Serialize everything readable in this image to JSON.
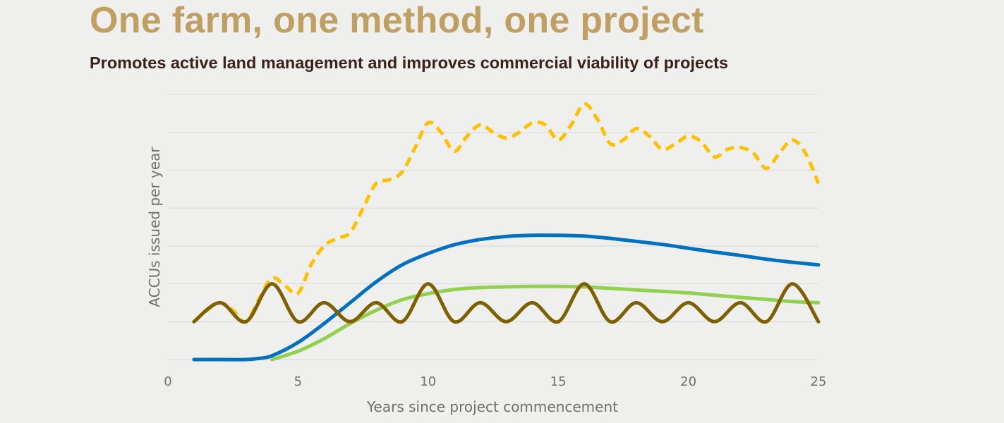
{
  "slide": {
    "title": "One farm, one method, one project",
    "subtitle": "Promotes active land management and improves commercial viability of projects"
  },
  "chart_data": {
    "type": "line",
    "title": "",
    "xlabel": "Years since project commencement",
    "ylabel": "ACCUs issued per year",
    "xlim": [
      0,
      25
    ],
    "ylim": [
      0,
      7
    ],
    "xticks": [
      0,
      5,
      10,
      15,
      20,
      25
    ],
    "gridlines": [
      0,
      1,
      2,
      3,
      4,
      5,
      6,
      7
    ],
    "grid": true,
    "legend": "none",
    "series": [
      {
        "color": "#ffc000",
        "style": "dashed",
        "points": [
          [
            1,
            1
          ],
          [
            1.5,
            1.3
          ],
          [
            2,
            1.5
          ],
          [
            2.5,
            1.3
          ],
          [
            3,
            1
          ],
          [
            3.5,
            1.6
          ],
          [
            4,
            2.15
          ],
          [
            4.5,
            1.95
          ],
          [
            5,
            1.75
          ],
          [
            5.5,
            2.5
          ],
          [
            6,
            3
          ],
          [
            6.5,
            3.2
          ],
          [
            7,
            3.35
          ],
          [
            7.5,
            4
          ],
          [
            8,
            4.65
          ],
          [
            8.5,
            4.75
          ],
          [
            9,
            4.95
          ],
          [
            9.5,
            5.6
          ],
          [
            10,
            6.25
          ],
          [
            10.5,
            6
          ],
          [
            11,
            5.5
          ],
          [
            11.5,
            5.9
          ],
          [
            12,
            6.2
          ],
          [
            12.5,
            6
          ],
          [
            13,
            5.85
          ],
          [
            13.5,
            6
          ],
          [
            14,
            6.25
          ],
          [
            14.5,
            6.2
          ],
          [
            15,
            5.8
          ],
          [
            15.5,
            6.2
          ],
          [
            16,
            6.75
          ],
          [
            16.5,
            6.35
          ],
          [
            17,
            5.7
          ],
          [
            17.5,
            5.8
          ],
          [
            18,
            6.1
          ],
          [
            18.5,
            5.9
          ],
          [
            19,
            5.55
          ],
          [
            19.5,
            5.7
          ],
          [
            20,
            5.9
          ],
          [
            20.5,
            5.75
          ],
          [
            21,
            5.35
          ],
          [
            21.5,
            5.55
          ],
          [
            22,
            5.6
          ],
          [
            22.5,
            5.45
          ],
          [
            23,
            5.05
          ],
          [
            23.5,
            5.45
          ],
          [
            24,
            5.8
          ],
          [
            24.5,
            5.45
          ],
          [
            25,
            4.65
          ]
        ]
      },
      {
        "color": "#0070c0",
        "style": "solid",
        "points": [
          [
            1,
            0
          ],
          [
            2,
            0
          ],
          [
            3,
            0
          ],
          [
            3.5,
            0.03
          ],
          [
            4,
            0.1
          ],
          [
            5,
            0.45
          ],
          [
            6,
            0.95
          ],
          [
            7,
            1.5
          ],
          [
            8,
            2.05
          ],
          [
            9,
            2.5
          ],
          [
            10,
            2.8
          ],
          [
            11,
            3.03
          ],
          [
            12,
            3.17
          ],
          [
            13,
            3.25
          ],
          [
            14,
            3.28
          ],
          [
            15,
            3.28
          ],
          [
            16,
            3.26
          ],
          [
            17,
            3.2
          ],
          [
            18,
            3.12
          ],
          [
            19,
            3.04
          ],
          [
            20,
            2.94
          ],
          [
            21,
            2.84
          ],
          [
            22,
            2.75
          ],
          [
            23,
            2.65
          ],
          [
            24,
            2.57
          ],
          [
            25,
            2.5
          ]
        ]
      },
      {
        "color": "#92d050",
        "style": "solid",
        "points": [
          [
            4,
            0
          ],
          [
            5,
            0.22
          ],
          [
            6,
            0.55
          ],
          [
            7,
            0.95
          ],
          [
            8,
            1.3
          ],
          [
            9,
            1.58
          ],
          [
            10,
            1.74
          ],
          [
            11,
            1.85
          ],
          [
            12,
            1.9
          ],
          [
            13,
            1.92
          ],
          [
            14,
            1.93
          ],
          [
            15,
            1.93
          ],
          [
            16,
            1.92
          ],
          [
            17,
            1.88
          ],
          [
            18,
            1.84
          ],
          [
            19,
            1.8
          ],
          [
            20,
            1.76
          ],
          [
            21,
            1.7
          ],
          [
            22,
            1.64
          ],
          [
            23,
            1.59
          ],
          [
            24,
            1.53
          ],
          [
            25,
            1.5
          ]
        ]
      },
      {
        "color": "#7f6000",
        "style": "solid",
        "points": [
          [
            1,
            1
          ],
          [
            2,
            1.5
          ],
          [
            3,
            1
          ],
          [
            4,
            2
          ],
          [
            5,
            1
          ],
          [
            6,
            1.5
          ],
          [
            7,
            1
          ],
          [
            8,
            1.5
          ],
          [
            9,
            1
          ],
          [
            10,
            2
          ],
          [
            11,
            1
          ],
          [
            12,
            1.5
          ],
          [
            13,
            1
          ],
          [
            14,
            1.5
          ],
          [
            15,
            1
          ],
          [
            16,
            2
          ],
          [
            17,
            1
          ],
          [
            18,
            1.5
          ],
          [
            19,
            1
          ],
          [
            20,
            1.5
          ],
          [
            21,
            1
          ],
          [
            22,
            1.5
          ],
          [
            23,
            1
          ],
          [
            24,
            2
          ],
          [
            25,
            1
          ]
        ]
      }
    ]
  }
}
